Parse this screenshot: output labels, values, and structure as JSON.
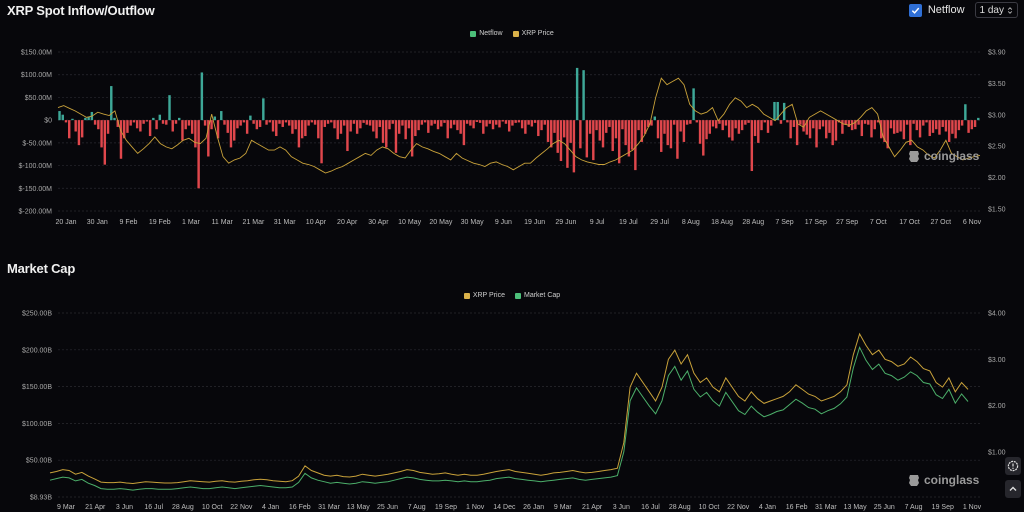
{
  "header": {
    "netflow_checkbox": {
      "label": "Netflow",
      "checked": true
    },
    "interval_select": {
      "value": "1 day"
    }
  },
  "colors": {
    "background": "#07070b",
    "inflow": "#3ea898",
    "outflow": "#e0474c",
    "price": "#c9a23a",
    "market_cap": "#4caf6a",
    "grid": "#2a2a30",
    "axis_text": "#a8a8a8",
    "checkbox": "#2f6fd6"
  },
  "watermark": "coinglass",
  "chart_data": [
    {
      "id": "spot_flow",
      "type": "bar",
      "title": "XRP Spot Inflow/Outflow",
      "legend": [
        "Netflow",
        "XRP Price"
      ],
      "legend_position": "top-center",
      "grid": true,
      "y_left": {
        "label": "Netflow",
        "ticks": [
          "$150.00M",
          "$100.00M",
          "$50.00M",
          "$0",
          "$-50.00M",
          "$-100.00M",
          "$-150.00M",
          "$-200.00M"
        ],
        "range": [
          -200,
          150
        ],
        "unit": "M USD"
      },
      "y_right": {
        "label": "XRP Price",
        "ticks": [
          "$3.90",
          "$3.50",
          "$3.00",
          "$2.50",
          "$2.00",
          "$1.50"
        ],
        "range": [
          1.5,
          3.9
        ]
      },
      "x_ticks": [
        "20 Jan",
        "30 Jan",
        "9 Feb",
        "19 Feb",
        "1 Mar",
        "11 Mar",
        "21 Mar",
        "31 Mar",
        "10 Apr",
        "20 Apr",
        "30 Apr",
        "10 May",
        "20 May",
        "30 May",
        "9 Jun",
        "19 Jun",
        "29 Jun",
        "9 Jul",
        "19 Jul",
        "29 Jul",
        "8 Aug",
        "18 Aug",
        "28 Aug",
        "7 Sep",
        "17 Sep",
        "27 Sep",
        "7 Oct",
        "17 Oct",
        "27 Oct",
        "6 Nov"
      ],
      "series": [
        {
          "name": "Netflow",
          "type": "bar",
          "unit": "M USD",
          "values": [
            20,
            12,
            -5,
            -40,
            3,
            -25,
            -55,
            -38,
            5,
            8,
            18,
            -10,
            -20,
            -60,
            -98,
            -30,
            75,
            5,
            -15,
            -85,
            -40,
            -28,
            -12,
            -5,
            -18,
            -25,
            -8,
            -3,
            -35,
            5,
            -20,
            12,
            -8,
            -10,
            55,
            -25,
            -8,
            5,
            -45,
            -20,
            -12,
            -30,
            -60,
            -150,
            105,
            -12,
            -80,
            -20,
            8,
            -40,
            20,
            -10,
            -28,
            -60,
            -45,
            -18,
            -12,
            -5,
            -30,
            10,
            -8,
            -20,
            -15,
            48,
            -10,
            -5,
            -25,
            -35,
            -8,
            -15,
            -5,
            -12,
            -30,
            -20,
            -60,
            -40,
            -35,
            -12,
            -5,
            -10,
            -40,
            -95,
            -15,
            -8,
            -5,
            -18,
            -42,
            -30,
            -12,
            -68,
            -25,
            -8,
            -30,
            -18,
            -6,
            -10,
            -12,
            -25,
            -40,
            -15,
            -50,
            -60,
            -20,
            -8,
            -72,
            -30,
            -12,
            -42,
            -18,
            -80,
            -35,
            -22,
            -10,
            -5,
            -28,
            -12,
            -8,
            -20,
            -14,
            -6,
            -40,
            -18,
            -10,
            -22,
            -30,
            -55,
            -8,
            -12,
            -18,
            -4,
            -6,
            -30,
            -14,
            -8,
            -20,
            -10,
            -16,
            -3,
            -8,
            -25,
            -12,
            -6,
            -5,
            -18,
            -30,
            -10,
            -14,
            -6,
            -35,
            -22,
            -10,
            -48,
            -60,
            -28,
            -72,
            -90,
            -38,
            -105,
            -50,
            -115,
            115,
            -62,
            110,
            -82,
            -30,
            -88,
            -22,
            -45,
            -60,
            -28,
            -15,
            -68,
            -40,
            -95,
            -20,
            -55,
            -80,
            -65,
            -110,
            -22,
            -48,
            -30,
            -15,
            -12,
            8,
            -40,
            -70,
            -30,
            -55,
            -62,
            -10,
            -85,
            -25,
            -48,
            -10,
            -8,
            70,
            -5,
            -52,
            -78,
            -42,
            -30,
            -14,
            -18,
            -8,
            -22,
            -12,
            -38,
            -45,
            -18,
            -30,
            -22,
            -10,
            -6,
            -112,
            -35,
            -50,
            -22,
            -5,
            -28,
            -12,
            40,
            40,
            -8,
            38,
            -5,
            -40,
            -15,
            -55,
            -10,
            -25,
            -32,
            -40,
            -18,
            -60,
            -20,
            -14,
            -40,
            -28,
            -55,
            -45,
            -5,
            -30,
            -10,
            -15,
            -22,
            -20,
            -10,
            -35,
            -8,
            -10,
            -38,
            -20,
            -5,
            -40,
            -48,
            -62,
            -18,
            -30,
            -28,
            -25,
            -42,
            -10,
            -55,
            -8,
            -22,
            -38,
            -12,
            -5,
            -35,
            -28,
            -20,
            -32,
            -15,
            -25,
            -48,
            -30,
            -40,
            -22,
            -12,
            35,
            -28,
            -20,
            -15,
            5
          ]
        },
        {
          "name": "XRP Price",
          "type": "line",
          "values": [
            3.05,
            3.08,
            3.04,
            3.0,
            2.95,
            2.9,
            2.92,
            2.98,
            2.95,
            2.93,
            3.0,
            2.7,
            2.55,
            2.45,
            2.35,
            2.42,
            2.5,
            2.6,
            2.5,
            2.45,
            2.42,
            2.48,
            2.55,
            2.58,
            2.52,
            2.5,
            2.58,
            2.95,
            2.6,
            2.3,
            2.2,
            2.25,
            2.28,
            2.35,
            2.55,
            2.5,
            2.45,
            2.4,
            2.4,
            2.45,
            2.4,
            2.3,
            2.25,
            2.2,
            2.18,
            2.15,
            2.1,
            2.05,
            2.08,
            2.12,
            2.15,
            2.2,
            2.25,
            2.3,
            2.35,
            2.32,
            2.4,
            2.45,
            2.42,
            2.35,
            2.3,
            2.28,
            2.4,
            2.5,
            2.45,
            2.42,
            2.38,
            2.35,
            2.3,
            2.25,
            2.35,
            2.28,
            2.24,
            2.2,
            2.18,
            2.15,
            2.2,
            2.22,
            2.18,
            2.15,
            2.1,
            2.15,
            2.2,
            2.2,
            2.28,
            2.35,
            2.42,
            2.5,
            2.55,
            2.5,
            2.4,
            2.3,
            2.25,
            2.22,
            2.2,
            2.18,
            2.18,
            2.22,
            2.25,
            2.3,
            2.35,
            2.4,
            2.5,
            2.62,
            2.8,
            3.2,
            3.5,
            3.4,
            3.45,
            3.5,
            3.4,
            3.1,
            3.0,
            2.95,
            2.98,
            3.05,
            2.85,
            2.95,
            3.1,
            3.2,
            3.15,
            3.05,
            3.1,
            3.05,
            2.95,
            2.9,
            2.85,
            2.95,
            3.05,
            3.1,
            2.8,
            2.75,
            2.9,
            2.95,
            3.0,
            2.95,
            2.9,
            2.85,
            2.8,
            2.78,
            2.82,
            2.9,
            3.0,
            3.05,
            2.95,
            2.6,
            2.45,
            2.3,
            2.4,
            2.52,
            2.55,
            2.45,
            2.4,
            2.32,
            2.28,
            2.4,
            2.55,
            2.35,
            2.3,
            2.25,
            2.28,
            2.3,
            2.32
          ]
        }
      ]
    },
    {
      "id": "market_cap",
      "type": "line",
      "title": "Market Cap",
      "legend": [
        "XRP Price",
        "Market Cap"
      ],
      "legend_position": "top-center",
      "grid": true,
      "y_left": {
        "label": "Market Cap",
        "ticks": [
          "$250.00B",
          "$200.00B",
          "$150.00B",
          "$100.00B",
          "$50.00B",
          "$8.93B"
        ],
        "range": [
          8.93,
          250
        ],
        "unit": "B USD"
      },
      "y_right": {
        "label": "XRP Price",
        "ticks": [
          "$4.00",
          "$3.00",
          "$2.00",
          "$1.00"
        ],
        "range": [
          0,
          4
        ]
      },
      "x_ticks": [
        "9 Mar",
        "21 Apr",
        "3 Jun",
        "16 Jul",
        "28 Aug",
        "10 Oct",
        "22 Nov",
        "4 Jan",
        "16 Feb",
        "31 Mar",
        "13 May",
        "25 Jun",
        "7 Aug",
        "19 Sep",
        "1 Nov",
        "14 Dec",
        "26 Jan",
        "9 Mar",
        "21 Apr",
        "3 Jun",
        "16 Jul",
        "28 Aug",
        "10 Oct",
        "22 Nov",
        "4 Jan",
        "16 Feb",
        "31 Mar",
        "13 May",
        "25 Jun",
        "7 Aug",
        "19 Sep",
        "1 Nov"
      ],
      "series": [
        {
          "name": "XRP Price",
          "type": "line",
          "values": [
            0.55,
            0.58,
            0.62,
            0.6,
            0.52,
            0.56,
            0.48,
            0.42,
            0.35,
            0.34,
            0.34,
            0.35,
            0.33,
            0.32,
            0.34,
            0.36,
            0.35,
            0.34,
            0.33,
            0.33,
            0.34,
            0.36,
            0.38,
            0.37,
            0.36,
            0.35,
            0.37,
            0.38,
            0.36,
            0.35,
            0.37,
            0.38,
            0.4,
            0.41,
            0.4,
            0.38,
            0.37,
            0.36,
            0.38,
            0.48,
            0.7,
            0.6,
            0.55,
            0.5,
            0.48,
            0.5,
            0.47,
            0.46,
            0.48,
            0.52,
            0.5,
            0.48,
            0.5,
            0.52,
            0.55,
            0.58,
            0.62,
            0.6,
            0.56,
            0.54,
            0.52,
            0.53,
            0.55,
            0.52,
            0.5,
            0.52,
            0.5,
            0.5,
            0.52,
            0.55,
            0.58,
            0.6,
            0.62,
            0.58,
            0.56,
            0.54,
            0.52,
            0.5,
            0.52,
            0.55,
            0.56,
            0.58,
            0.6,
            0.57,
            0.55,
            0.56,
            0.58,
            0.6,
            0.62,
            0.65,
            1.2,
            2.4,
            2.7,
            2.5,
            2.3,
            2.1,
            2.4,
            3.0,
            3.2,
            2.9,
            3.1,
            2.7,
            2.5,
            2.6,
            2.4,
            2.3,
            2.6,
            2.4,
            2.2,
            2.1,
            2.3,
            2.15,
            2.05,
            2.1,
            2.15,
            2.2,
            2.3,
            2.45,
            2.35,
            2.25,
            2.2,
            2.1,
            2.15,
            2.2,
            2.3,
            2.45,
            3.1,
            3.55,
            3.3,
            3.1,
            3.2,
            3.0,
            2.95,
            2.85,
            2.9,
            3.05,
            2.95,
            2.8,
            2.75,
            2.5,
            2.4,
            2.6,
            2.3,
            2.5,
            2.35
          ]
        },
        {
          "name": "Market Cap",
          "type": "line",
          "unit": "B USD",
          "values": [
            31,
            33,
            35,
            34,
            30,
            32,
            27,
            24,
            20,
            19,
            19,
            20,
            19,
            18,
            19,
            20,
            20,
            19,
            19,
            19,
            20,
            21,
            22,
            21,
            20,
            20,
            21,
            22,
            21,
            20,
            21,
            22,
            23,
            24,
            23,
            22,
            21,
            21,
            22,
            28,
            40,
            34,
            31,
            29,
            27,
            28,
            27,
            26,
            27,
            29,
            28,
            27,
            28,
            29,
            31,
            33,
            35,
            34,
            32,
            31,
            30,
            30,
            31,
            30,
            29,
            30,
            29,
            29,
            30,
            31,
            33,
            34,
            35,
            33,
            32,
            31,
            30,
            29,
            30,
            31,
            32,
            33,
            34,
            32,
            31,
            32,
            33,
            34,
            35,
            37,
            68,
            135,
            152,
            140,
            128,
            118,
            135,
            168,
            180,
            162,
            174,
            150,
            140,
            146,
            135,
            128,
            146,
            134,
            122,
            117,
            128,
            120,
            114,
            117,
            121,
            123,
            130,
            137,
            132,
            126,
            124,
            118,
            122,
            125,
            131,
            140,
            178,
            205,
            188,
            176,
            183,
            171,
            168,
            162,
            166,
            173,
            168,
            159,
            157,
            143,
            138,
            150,
            132,
            144,
            134
          ]
        }
      ]
    }
  ],
  "sections": [
    {
      "title": "XRP Spot Inflow/Outflow"
    },
    {
      "title": "Market Cap"
    }
  ]
}
